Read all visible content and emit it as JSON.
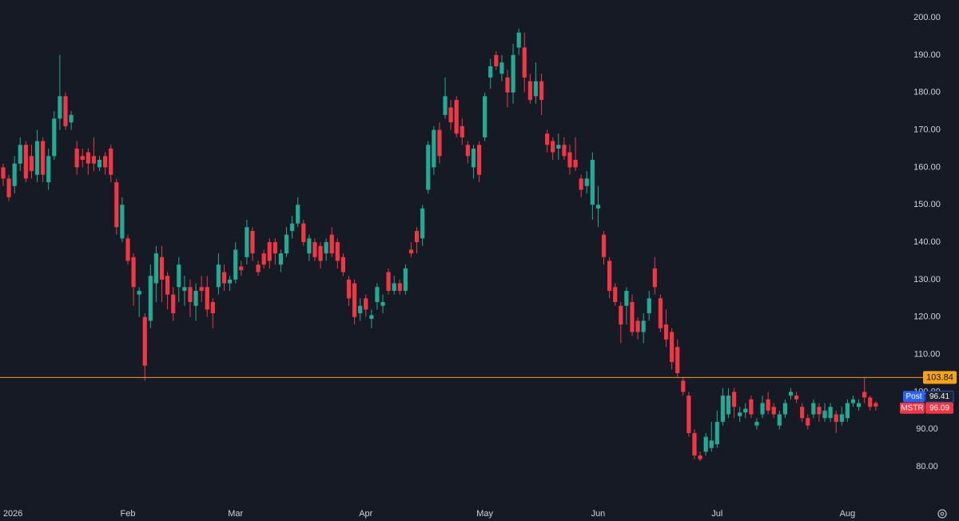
{
  "chart_data": {
    "type": "candlestick",
    "categories": [
      null,
      null,
      "2026",
      null,
      null,
      null,
      null,
      null,
      null,
      null,
      null,
      null,
      null,
      null,
      null,
      null,
      null,
      null,
      null,
      null,
      null,
      null,
      "Feb",
      null,
      null,
      null,
      null,
      null,
      null,
      null,
      null,
      null,
      null,
      null,
      null,
      null,
      null,
      null,
      null,
      null,
      null,
      "Mar",
      null,
      null,
      null,
      null,
      null,
      null,
      null,
      null,
      null,
      null,
      null,
      null,
      null,
      null,
      null,
      null,
      null,
      null,
      null,
      null,
      null,
      null,
      "Apr",
      null,
      null,
      null,
      null,
      null,
      null,
      null,
      null,
      null,
      null,
      null,
      null,
      null,
      null,
      null,
      null,
      null,
      null,
      null,
      null,
      "May",
      null,
      null,
      null,
      null,
      null,
      null,
      null,
      null,
      null,
      null,
      null,
      null,
      null,
      null,
      null,
      null,
      null,
      null,
      null,
      "Jun",
      null,
      null,
      null,
      null,
      null,
      null,
      null,
      null,
      null,
      null,
      null,
      null,
      null,
      null,
      null,
      null,
      null,
      null,
      null,
      null,
      "Jul",
      null,
      null,
      null,
      null,
      null,
      null,
      null,
      null,
      null,
      null,
      null,
      null,
      null,
      null,
      null,
      null,
      null,
      null,
      null,
      null,
      null,
      null,
      "Aug",
      null,
      null,
      null,
      null,
      null
    ],
    "open": [
      160,
      157,
      155,
      161,
      166,
      163,
      158,
      167,
      156,
      163,
      173,
      179,
      172,
      165,
      163,
      164,
      163,
      160,
      163,
      165,
      156,
      141,
      141,
      136,
      126,
      120,
      119,
      129,
      136,
      131,
      126,
      128,
      127,
      128,
      123,
      128,
      128,
      124,
      128,
      132,
      129,
      130,
      133.5,
      136,
      143,
      134,
      137,
      140,
      140,
      134,
      137,
      143,
      145,
      145,
      137,
      140,
      139,
      137,
      142,
      140,
      136,
      130,
      129,
      121,
      125,
      119.5,
      124,
      123,
      132,
      127,
      129,
      127,
      138,
      143,
      141,
      154,
      160,
      170,
      174,
      176,
      178,
      171,
      166,
      160,
      166,
      168,
      184,
      190,
      185,
      184,
      180,
      192,
      192,
      183,
      179,
      183,
      169,
      167,
      165,
      166,
      164,
      162,
      157,
      155,
      150,
      149,
      142,
      135,
      128,
      123,
      123,
      124,
      119,
      116,
      121,
      133,
      125,
      118,
      116,
      112,
      103,
      99,
      89,
      83,
      84,
      85,
      86,
      92,
      94,
      100,
      93.5,
      94.5,
      98,
      91,
      94,
      98,
      96,
      91,
      94,
      99,
      99,
      96,
      93,
      94,
      96,
      93,
      93,
      94,
      92,
      93,
      97,
      96,
      100,
      98.5,
      97
    ],
    "high": [
      161,
      158,
      163,
      168,
      167,
      166,
      170,
      168,
      165,
      175,
      190,
      180,
      175,
      167,
      165,
      165,
      168,
      163,
      164,
      166,
      157,
      152,
      142,
      137,
      128,
      121,
      134,
      139,
      139,
      132,
      128,
      136,
      131,
      130,
      129,
      131,
      131,
      125,
      137,
      134,
      131,
      140,
      135,
      146,
      144,
      135,
      138,
      141,
      141,
      138,
      144,
      147,
      152,
      146,
      142,
      141,
      140,
      141,
      144,
      141,
      137,
      131,
      130,
      125,
      126,
      122,
      129,
      126,
      133,
      131,
      130,
      134,
      140,
      144,
      150,
      167,
      171,
      172,
      184,
      178,
      179,
      173,
      167,
      166,
      167,
      180,
      189,
      191,
      190,
      186,
      193,
      197,
      196,
      185,
      188,
      185,
      170,
      168,
      169,
      168,
      166,
      168,
      158,
      159,
      164,
      155,
      143,
      136,
      129,
      124,
      128,
      126,
      120,
      121,
      127,
      136,
      126,
      122,
      117,
      114,
      104,
      100,
      90,
      84,
      89,
      92,
      95,
      101,
      101,
      101,
      96,
      97,
      99,
      93,
      99,
      100,
      97,
      95,
      98,
      101,
      100,
      97,
      94,
      98,
      97,
      97,
      97,
      95,
      96,
      98,
      99,
      98,
      104,
      99,
      97.5
    ],
    "low": [
      155,
      151,
      153,
      159,
      156,
      157,
      156,
      156,
      154,
      162,
      170,
      170,
      170,
      158,
      160,
      158,
      159,
      159,
      158,
      156,
      142,
      140,
      134,
      123,
      120,
      103,
      117,
      124,
      124,
      122,
      119,
      124,
      123,
      120,
      119,
      124,
      120,
      117,
      126,
      127,
      127,
      129,
      131,
      134,
      135,
      131,
      133,
      133,
      134,
      132,
      136,
      141,
      144,
      139,
      135,
      135,
      133,
      135,
      136,
      133,
      131,
      123,
      118,
      119,
      120,
      117,
      122,
      121,
      126,
      126,
      126,
      126,
      136,
      137,
      139,
      153,
      158,
      161,
      173,
      170,
      168,
      166,
      161,
      157,
      156,
      167,
      181,
      186,
      183,
      176,
      177,
      190,
      180,
      177,
      177,
      174,
      164,
      162,
      162,
      162,
      158,
      159,
      152,
      153,
      146,
      144,
      134,
      125,
      123,
      113,
      118,
      115,
      114,
      113,
      119,
      126,
      116,
      112,
      106,
      104,
      99,
      88,
      82,
      81.5,
      83,
      84,
      85,
      91,
      93,
      93,
      92,
      93,
      93,
      90,
      93,
      94,
      93,
      90,
      93,
      98,
      97,
      92,
      90,
      93,
      92,
      92,
      92,
      89,
      91,
      92,
      96,
      95,
      97,
      95,
      95
    ],
    "close": [
      157,
      152,
      161,
      166,
      157,
      159,
      167,
      158,
      163,
      173,
      179,
      171,
      174,
      160,
      162,
      161,
      161,
      162,
      160,
      158,
      144,
      150,
      135,
      128,
      127,
      107,
      131,
      137,
      130,
      126,
      121,
      134,
      128,
      124,
      127,
      127,
      122,
      121,
      134,
      129,
      130,
      138,
      132.5,
      144,
      137,
      132,
      134,
      135,
      137,
      137,
      142,
      145,
      150,
      140,
      141,
      136,
      135,
      140,
      137,
      135,
      132,
      125,
      120,
      123,
      122,
      120.5,
      128,
      124,
      127,
      129,
      127,
      133,
      137,
      140,
      149,
      166,
      170,
      163,
      179,
      172,
      169,
      168,
      163,
      165,
      158,
      179,
      187,
      187,
      188,
      180,
      190,
      196,
      184,
      178,
      183,
      178,
      166,
      164,
      166,
      163,
      160,
      160,
      154,
      157,
      162,
      150,
      136,
      127,
      124,
      118,
      127,
      116,
      116,
      119,
      125,
      128,
      117,
      114,
      108,
      105,
      100,
      89,
      83,
      82,
      88,
      87,
      92,
      99,
      99,
      96,
      94.5,
      95.5,
      94,
      92,
      97,
      95,
      94,
      94,
      97,
      100,
      98,
      93,
      91,
      97,
      94,
      95,
      96,
      92,
      94,
      97,
      98,
      97,
      98.5,
      96,
      96.09
    ],
    "up_color": "#22ab94",
    "down_color": "#f23645",
    "ylim": [
      70.2,
      204.7
    ],
    "yticks": [
      {
        "value": 80,
        "label": "80.00"
      },
      {
        "value": 90,
        "label": "90.00"
      },
      {
        "value": 100,
        "label": "100.00"
      },
      {
        "value": 110,
        "label": "110.00"
      },
      {
        "value": 120,
        "label": "120.00"
      },
      {
        "value": 130,
        "label": "130.00"
      },
      {
        "value": 140,
        "label": "140.00"
      },
      {
        "value": 150,
        "label": "150.00"
      },
      {
        "value": 160,
        "label": "160.00"
      },
      {
        "value": 170,
        "label": "170.00"
      },
      {
        "value": 180,
        "label": "180.00"
      },
      {
        "value": 190,
        "label": "190.00"
      },
      {
        "value": 200,
        "label": "200.00"
      }
    ],
    "grid": false,
    "price_line": {
      "value": 103.84,
      "color": "#f7a21b"
    },
    "price_labels": [
      {
        "name": "Post",
        "value": 96.41,
        "color": "#2962ff"
      },
      {
        "name": "MSTR",
        "value": 96.09,
        "color": "#f23645"
      }
    ]
  }
}
